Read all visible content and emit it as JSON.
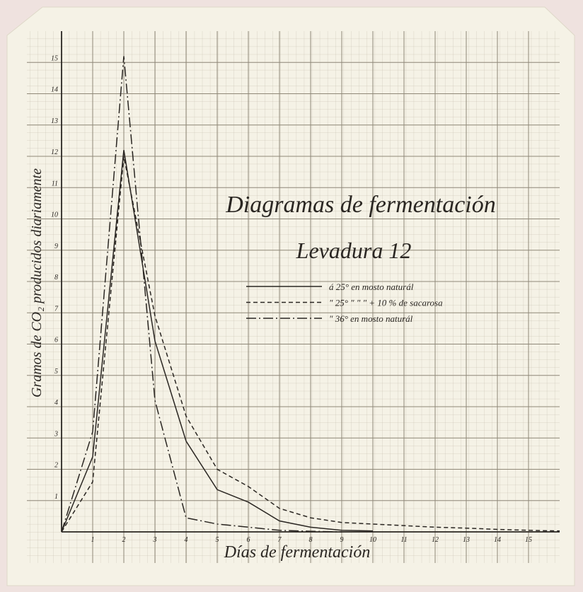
{
  "chart_data": {
    "type": "line",
    "title": "Diagramas de fermentación",
    "subtitle": "Levadura 12",
    "xlabel": "Días de fermentación",
    "ylabel": "Gramos de CO₂ producidos diariamente",
    "x": [
      0,
      1,
      2,
      3,
      4,
      5,
      6,
      7,
      8,
      9,
      10,
      11,
      12,
      13,
      14,
      15,
      16
    ],
    "series": [
      {
        "name": "á 25° en mosto naturál",
        "color": "#2a2622",
        "dash": "solid",
        "values": [
          0,
          2.4,
          12.2,
          6.1,
          2.9,
          1.35,
          0.95,
          0.35,
          0.15,
          0.05,
          0.03,
          null,
          null,
          null,
          null,
          null,
          null
        ]
      },
      {
        "name": "\" 25° \"   \"   \"   + 10 % de sacarosa",
        "color": "#2a2622",
        "dash": "dashed",
        "values": [
          0,
          1.6,
          12.0,
          6.9,
          3.7,
          2.0,
          1.45,
          0.75,
          0.45,
          0.3,
          0.25,
          0.2,
          0.15,
          0.12,
          0.08,
          0.05,
          0.03
        ]
      },
      {
        "name": "\" 36° en mosto naturál",
        "color": "#2a2622",
        "dash": "dashdot",
        "values": [
          0,
          3.2,
          15.2,
          4.2,
          0.45,
          0.25,
          0.15,
          0.05,
          0.02,
          0,
          null,
          null,
          null,
          null,
          null,
          null,
          null
        ]
      }
    ],
    "xlim": [
      0,
      16
    ],
    "ylim": [
      0,
      16
    ],
    "xticks": [
      1,
      2,
      3,
      4,
      5,
      6,
      7,
      8,
      9,
      10,
      11,
      12,
      13,
      14,
      15
    ],
    "yticks": [
      1,
      2,
      3,
      4,
      5,
      6,
      7,
      8,
      9,
      10,
      11,
      12,
      13,
      14,
      15
    ],
    "grid": true
  }
}
